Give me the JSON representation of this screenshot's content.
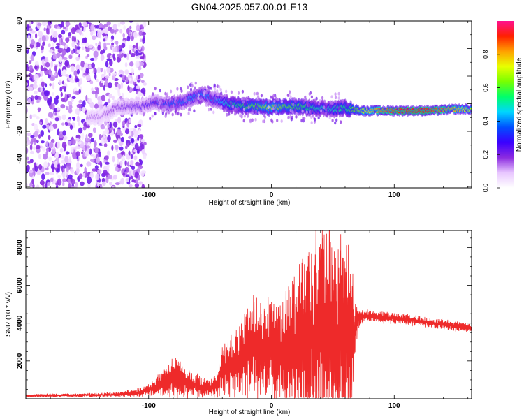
{
  "title": "GN04.2025.057.00.01.E13",
  "chart_data": [
    {
      "type": "heatmap",
      "title": "GN04.2025.057.00.01.E13",
      "xlabel": "Height of straight line (km)",
      "ylabel": "Frequency (Hz)",
      "xlim": [
        -200,
        163
      ],
      "ylim": [
        -61,
        60
      ],
      "x_ticks": [
        -100,
        0,
        100
      ],
      "y_ticks": [
        -60,
        -40,
        -20,
        0,
        20,
        40,
        60
      ],
      "grid": false,
      "noise_region_km": [
        -200,
        -103
      ],
      "ridge": {
        "x": [
          -150,
          -138,
          -125,
          -115,
          -105,
          -95,
          -85,
          -75,
          -65,
          -55,
          -48,
          -40,
          -30,
          -20,
          -10,
          0,
          10,
          20,
          30,
          40,
          50,
          60,
          65,
          75,
          90,
          110,
          130,
          150,
          163
        ],
        "y": [
          -10,
          -9,
          -2,
          -2,
          -2,
          1,
          -1,
          1,
          4,
          7,
          3,
          1,
          -1,
          -2,
          -2,
          -3,
          -2,
          -2,
          -3,
          -3,
          -4,
          -3,
          -4,
          -5,
          -5,
          -5,
          -5,
          -4,
          -4
        ],
        "amplitude": [
          0.15,
          0.15,
          0.2,
          0.22,
          0.25,
          0.3,
          0.35,
          0.4,
          0.4,
          0.42,
          0.4,
          0.45,
          0.55,
          0.6,
          0.65,
          0.7,
          0.65,
          0.6,
          0.55,
          0.5,
          0.5,
          0.55,
          0.6,
          0.7,
          0.85,
          0.92,
          0.9,
          0.8,
          0.7
        ]
      },
      "colorbar": {
        "label": "Normalized spectral amplitude",
        "ticks": [
          "0.0",
          "0.2",
          "0.4",
          "0.6",
          "0.8"
        ],
        "range": [
          0,
          1
        ],
        "colors": [
          "#ffffff",
          "#e8c6ff",
          "#8b2be0",
          "#3a00ff",
          "#0050ff",
          "#00d6ff",
          "#00ff6a",
          "#78ff00",
          "#e8ff00",
          "#ffa000",
          "#ff2000",
          "#ff1090"
        ]
      }
    },
    {
      "type": "line",
      "xlabel": "Height of straight line (km)",
      "ylabel": "SNR (10 * v/v)",
      "xlim": [
        -200,
        163
      ],
      "ylim": [
        0,
        8900
      ],
      "x_ticks": [
        -100,
        0,
        100
      ],
      "y_ticks": [
        2000,
        4000,
        6000,
        8000
      ],
      "grid": false,
      "color": "#ee2a2a",
      "series": [
        {
          "name": "SNR",
          "x": [
            -200,
            -180,
            -160,
            -140,
            -120,
            -105,
            -95,
            -85,
            -80,
            -75,
            -70,
            -65,
            -60,
            -55,
            -50,
            -45,
            -40,
            -35,
            -30,
            -25,
            -20,
            -15,
            -10,
            -5,
            0,
            5,
            10,
            15,
            20,
            25,
            30,
            35,
            40,
            45,
            50,
            55,
            60,
            65,
            68,
            70,
            75,
            80,
            90,
            100,
            110,
            120,
            130,
            140,
            150,
            163
          ],
          "mean": [
            150,
            180,
            180,
            200,
            250,
            350,
            600,
            900,
            1100,
            1100,
            900,
            800,
            700,
            600,
            550,
            700,
            1500,
            1800,
            1900,
            2100,
            2400,
            2600,
            2700,
            2600,
            2600,
            2400,
            2500,
            2700,
            2800,
            3200,
            3300,
            3400,
            3500,
            3600,
            3400,
            3300,
            3200,
            3100,
            3600,
            4300,
            4350,
            4400,
            4300,
            4250,
            4200,
            4100,
            4000,
            3950,
            3850,
            3750
          ],
          "amp": [
            60,
            80,
            80,
            90,
            120,
            200,
            400,
            700,
            900,
            900,
            700,
            600,
            500,
            400,
            400,
            550,
            1000,
            1300,
            1400,
            1600,
            1900,
            2100,
            2300,
            2300,
            2300,
            2300,
            2500,
            2800,
            3000,
            3800,
            4200,
            4500,
            4800,
            5100,
            4800,
            4500,
            4300,
            4100,
            1500,
            600,
            250,
            250,
            250,
            230,
            230,
            230,
            220,
            220,
            220,
            200
          ]
        }
      ]
    }
  ]
}
